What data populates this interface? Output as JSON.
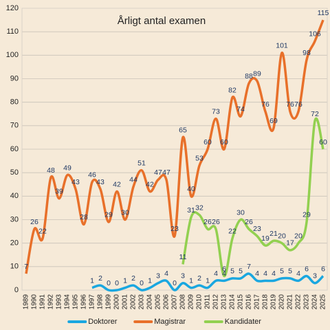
{
  "chart_data": {
    "type": "line",
    "title": "Årligt antal examen",
    "categories": [
      "1989",
      "1990",
      "1991",
      "1992",
      "1993",
      "1994",
      "1995",
      "1996",
      "1997",
      "1998",
      "1999",
      "2000",
      "2001",
      "2002",
      "2003",
      "2004",
      "2005",
      "2006",
      "2007",
      "2008",
      "2009",
      "2010",
      "2011",
      "2012",
      "2013",
      "2014",
      "2015",
      "2016",
      "2017",
      "2018",
      "2019",
      "2020",
      "2021",
      "2022",
      "2023",
      "2024",
      "2025"
    ],
    "series": [
      {
        "name": "Doktorer",
        "color": "#1aa7e0",
        "values": [
          null,
          null,
          null,
          null,
          null,
          null,
          null,
          null,
          1,
          2,
          0,
          0,
          1,
          2,
          0,
          1,
          3,
          4,
          0,
          3,
          1,
          2,
          1,
          4,
          4,
          5,
          5,
          7,
          4,
          4,
          4,
          5,
          5,
          4,
          6,
          3,
          6
        ]
      },
      {
        "name": "Magistrar",
        "color": "#e8702a",
        "values": [
          7,
          26,
          22,
          48,
          39,
          49,
          43,
          28,
          46,
          43,
          29,
          42,
          30,
          44,
          51,
          42,
          47,
          47,
          23,
          65,
          40,
          53,
          60,
          73,
          60,
          82,
          74,
          88,
          89,
          76,
          69,
          101,
          76,
          76,
          98,
          106,
          115
        ]
      },
      {
        "name": "Kandidater",
        "color": "#92d050",
        "values": [
          null,
          null,
          null,
          null,
          null,
          null,
          null,
          null,
          null,
          null,
          null,
          null,
          null,
          null,
          null,
          null,
          null,
          null,
          null,
          11,
          31,
          32,
          26,
          26,
          6,
          22,
          30,
          26,
          23,
          19,
          21,
          20,
          17,
          20,
          29,
          72,
          60
        ]
      }
    ],
    "ylim": [
      0,
      120
    ],
    "yticks": [
      0,
      10,
      20,
      30,
      40,
      50,
      60,
      70,
      80,
      90,
      100,
      110,
      120
    ],
    "grid": true,
    "legend": "bottom"
  }
}
